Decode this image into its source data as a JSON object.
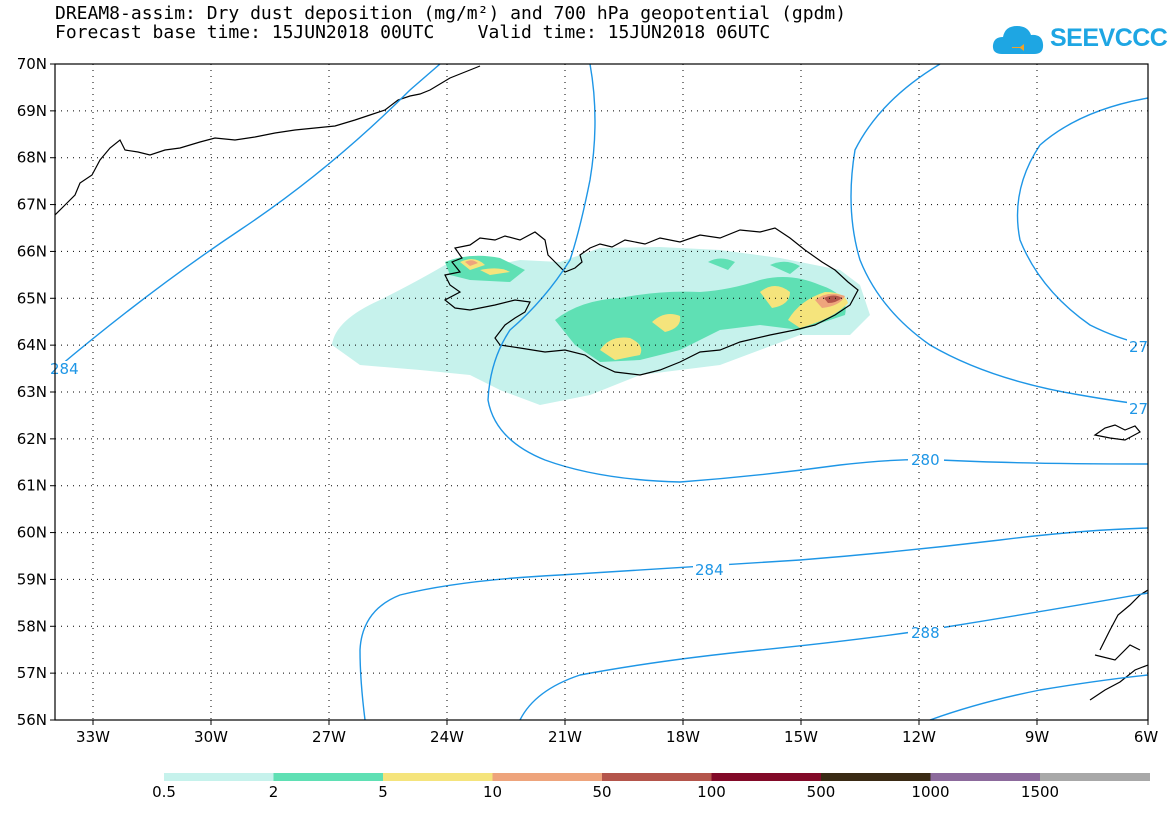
{
  "title_line1": "DREAM8-assim: Dry dust deposition (mg/m²) and 700 hPa geopotential (gpdm)",
  "title_line2": "Forecast base time: 15JUN2018 00UTC    Valid time: 15JUN2018 06UTC",
  "logo_text": "SEEVCCC",
  "map": {
    "lat_labels": [
      "70N",
      "69N",
      "68N",
      "67N",
      "66N",
      "65N",
      "64N",
      "63N",
      "62N",
      "61N",
      "60N",
      "59N",
      "58N",
      "57N",
      "56N"
    ],
    "lon_labels": [
      "33W",
      "30W",
      "27W",
      "24W",
      "21W",
      "18W",
      "15W",
      "12W",
      "9W",
      "6W"
    ],
    "contour_labels": [
      "280",
      "284",
      "288",
      "284",
      "27",
      "27",
      "284"
    ]
  },
  "legend": {
    "labels": [
      "0.5",
      "2",
      "5",
      "10",
      "50",
      "100",
      "500",
      "1000",
      "1500"
    ],
    "colors": [
      "#c6f2ec",
      "#5fe0b4",
      "#f5e47c",
      "#eea47c",
      "#b4554b",
      "#820a28",
      "#3a2a14",
      "#8c6a9c",
      "#a8a8a8"
    ]
  },
  "colors": {
    "contour": "#1e96e6",
    "grid": "#000000"
  }
}
